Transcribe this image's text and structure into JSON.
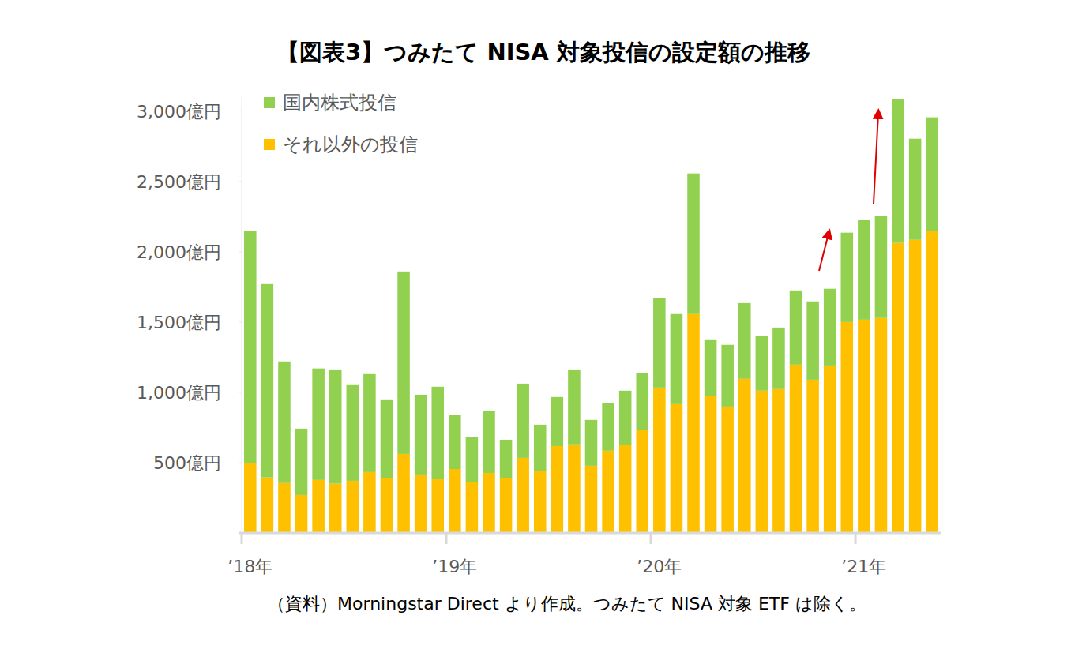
{
  "chart_data": {
    "type": "bar",
    "title": "【図表3】つみたて NISA 対象投信の設定額の推移",
    "source": "（資料）Morningstar Direct より作成。つみたて NISA 対象 ETF は除く。",
    "stacked": true,
    "grid": false,
    "legend": "top-left",
    "categories": [
      "’18年",
      null,
      null,
      null,
      null,
      null,
      null,
      null,
      null,
      null,
      null,
      null,
      "’19年",
      null,
      null,
      null,
      null,
      null,
      null,
      null,
      null,
      null,
      null,
      null,
      "’20年",
      null,
      null,
      null,
      null,
      null,
      null,
      null,
      null,
      null,
      null,
      null,
      "’21年",
      null,
      null,
      null,
      null
    ],
    "series": [
      {
        "name": "国内株式投信",
        "color": "#92d050",
        "values": [
          1650,
          1375,
          865,
          472,
          793,
          813,
          686,
          697,
          562,
          1298,
          567,
          658,
          382,
          320,
          438,
          270,
          528,
          332,
          349,
          533,
          326,
          337,
          388,
          404,
          636,
          641,
          1000,
          405,
          439,
          539,
          387,
          438,
          528,
          557,
          546,
          636,
          708,
          725,
          1022,
          719,
          809
        ]
      },
      {
        "name": "それ以外の投信",
        "color": "#ffc000",
        "values": [
          500,
          395,
          355,
          270,
          377,
          350,
          371,
          433,
          388,
          562,
          416,
          382,
          455,
          360,
          427,
          393,
          534,
          438,
          618,
          630,
          478,
          585,
          624,
          731,
          1034,
          916,
          1557,
          972,
          899,
          1096,
          1012,
          1023,
          1197,
          1090,
          1191,
          1500,
          1517,
          1529,
          2063,
          2085,
          2147
        ]
      }
    ],
    "ylim": [
      0,
      3100
    ],
    "yticks": [
      {
        "value": 500,
        "label": "500億円"
      },
      {
        "value": 1000,
        "label": "1,000億円"
      },
      {
        "value": 1500,
        "label": "1,500億円"
      },
      {
        "value": 2000,
        "label": "2,000億円"
      },
      {
        "value": 2500,
        "label": "2,500億円"
      },
      {
        "value": 3000,
        "label": "3,000億円"
      }
    ]
  }
}
